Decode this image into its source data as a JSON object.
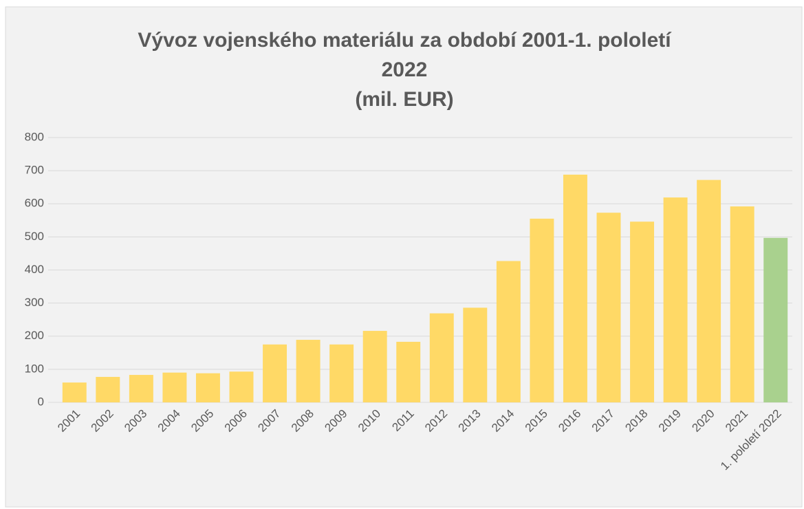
{
  "chart_data": {
    "type": "bar",
    "title": [
      "Vývoz vojenského materiálu za období 2001-1. pololetí",
      "2022",
      "(mil. EUR)"
    ],
    "categories": [
      "2001",
      "2002",
      "2003",
      "2004",
      "2005",
      "2006",
      "2007",
      "2008",
      "2009",
      "2010",
      "2011",
      "2012",
      "2013",
      "2014",
      "2015",
      "2016",
      "2017",
      "2018",
      "2019",
      "2020",
      "2021",
      "1. pololetí 2022"
    ],
    "values": [
      60,
      77,
      83,
      90,
      88,
      93,
      175,
      189,
      175,
      216,
      183,
      269,
      286,
      427,
      555,
      688,
      573,
      546,
      619,
      672,
      592,
      497
    ],
    "colors": [
      "#ffd966",
      "#ffd966",
      "#ffd966",
      "#ffd966",
      "#ffd966",
      "#ffd966",
      "#ffd966",
      "#ffd966",
      "#ffd966",
      "#ffd966",
      "#ffd966",
      "#ffd966",
      "#ffd966",
      "#ffd966",
      "#ffd966",
      "#ffd966",
      "#ffd966",
      "#ffd966",
      "#ffd966",
      "#ffd966",
      "#ffd966",
      "#a9d18e"
    ],
    "ylim": [
      0,
      800
    ],
    "yticks": [
      0,
      100,
      200,
      300,
      400,
      500,
      600,
      700,
      800
    ],
    "grid": true
  }
}
